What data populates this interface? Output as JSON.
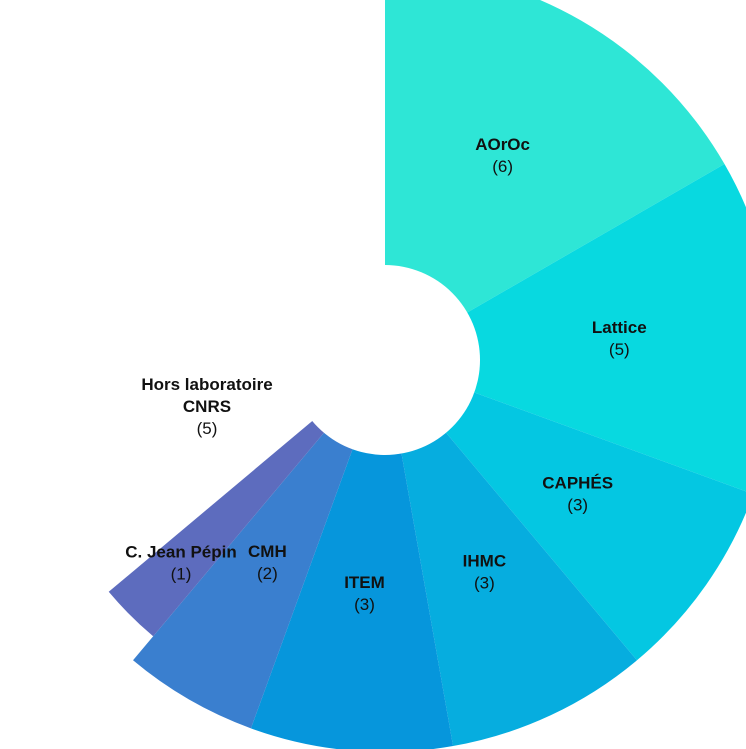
{
  "chart_data": {
    "type": "pie",
    "variant": "nightingale-rose",
    "title": "",
    "total_slots": 36,
    "slices": [
      {
        "name": "AOrOc",
        "value": 6,
        "value_label": "(6)",
        "color": "#2ee6d6",
        "relative_radius": 1.0,
        "visible": true
      },
      {
        "name": "Lattice",
        "value": 5,
        "value_label": "(5)",
        "color": "#08d9e0",
        "relative_radius": 1.0,
        "visible": true
      },
      {
        "name": "CAPHÉS",
        "value": 3,
        "value_label": "(3)",
        "color": "#04c7e2",
        "relative_radius": 1.0,
        "visible": true
      },
      {
        "name": "IHMC",
        "value": 3,
        "value_label": "(3)",
        "color": "#06addf",
        "relative_radius": 1.0,
        "visible": true
      },
      {
        "name": "ITEM",
        "value": 3,
        "value_label": "(3)",
        "color": "#0696dc",
        "relative_radius": 1.0,
        "visible": true
      },
      {
        "name": "CMH",
        "value": 2,
        "value_label": "(2)",
        "color": "#3a7fcf",
        "relative_radius": 1.0,
        "visible": true
      },
      {
        "name": "C. Jean Pépin",
        "value": 1,
        "value_label": "(1)",
        "color": "#5d6cbe",
        "relative_radius": 0.92,
        "visible": true
      },
      {
        "name": "Hors laboratoire\nCNRS",
        "value": 5,
        "value_label": "(5)",
        "color": "#ffffff",
        "relative_radius": 1.0,
        "visible": false
      }
    ]
  }
}
